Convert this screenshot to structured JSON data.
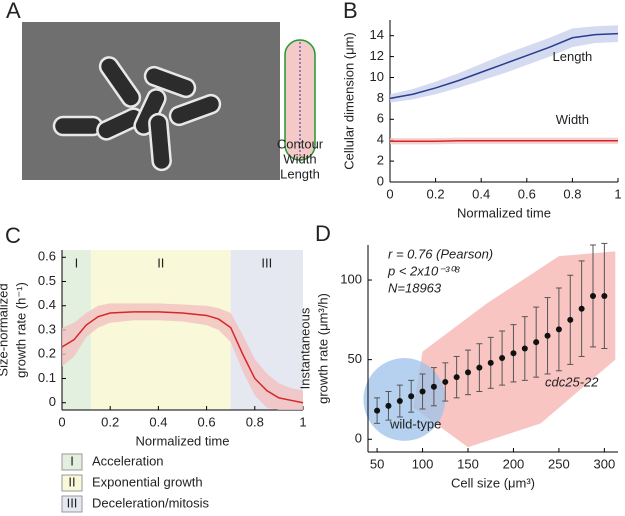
{
  "image_panel": {
    "label": "A",
    "legend": [
      {
        "text": "Contour",
        "color": "#1e9a2e"
      },
      {
        "text": "Width",
        "color": "#e0201b"
      },
      {
        "text": "Length",
        "color": "#1f3f9a"
      }
    ]
  },
  "chart_data": [
    {
      "type": "line",
      "panel_label": "B",
      "xlabel": "Normalized time",
      "ylabel": [
        "Cellular dimension (μm)"
      ],
      "xlim": [
        0,
        1
      ],
      "xticks": [
        0,
        0.2,
        0.4,
        0.6,
        0.8,
        1
      ],
      "ylim": [
        0,
        15.5
      ],
      "yticks": [
        0,
        2,
        4,
        6,
        8,
        10,
        12,
        14
      ],
      "x": [
        0,
        0.1,
        0.2,
        0.3,
        0.4,
        0.5,
        0.6,
        0.7,
        0.8,
        0.9,
        1
      ],
      "series": [
        {
          "name": "Length",
          "color": "#2a3c8e",
          "band_color": "#c9d2ee",
          "values": [
            8,
            8.4,
            9.0,
            9.7,
            10.5,
            11.3,
            12.1,
            12.9,
            13.8,
            14.1,
            14.2
          ],
          "lower": [
            7.6,
            7.9,
            8.4,
            9.0,
            9.7,
            10.4,
            11.2,
            12.0,
            12.9,
            13.3,
            13.4
          ],
          "upper": [
            8.4,
            8.9,
            9.6,
            10.4,
            11.3,
            12.2,
            13.0,
            13.8,
            14.7,
            14.9,
            15.0
          ]
        },
        {
          "name": "Width",
          "color": "#d62728",
          "band_color": "#f4c6c6",
          "values": [
            3.9,
            3.9,
            3.9,
            3.95,
            3.95,
            3.95,
            3.95,
            3.95,
            3.95,
            3.95,
            3.95
          ],
          "lower": [
            3.6,
            3.6,
            3.6,
            3.65,
            3.65,
            3.65,
            3.65,
            3.65,
            3.65,
            3.65,
            3.65
          ],
          "upper": [
            4.2,
            4.2,
            4.2,
            4.25,
            4.25,
            4.25,
            4.25,
            4.25,
            4.25,
            4.25,
            4.25
          ]
        }
      ]
    },
    {
      "type": "line",
      "panel_label": "C",
      "xlabel": "Normalized time",
      "ylabel": [
        "Size-normalized",
        "growth rate (h⁻¹)"
      ],
      "xlim": [
        0,
        1
      ],
      "xticks": [
        0,
        0.2,
        0.4,
        0.6,
        0.8,
        1
      ],
      "ylim": [
        -0.03,
        0.63
      ],
      "yticks": [
        0,
        0.1,
        0.2,
        0.3,
        0.4,
        0.5,
        0.6
      ],
      "phases": [
        {
          "label": "I",
          "name": "Acceleration",
          "start": 0,
          "end": 0.12,
          "color": "#e3f0e0"
        },
        {
          "label": "II",
          "name": "Exponential growth",
          "start": 0.12,
          "end": 0.7,
          "color": "#f9f8d9"
        },
        {
          "label": "III",
          "name": "Deceleration/mitosis",
          "start": 0.7,
          "end": 1,
          "color": "#e5e7f1"
        }
      ],
      "x": [
        0,
        0.05,
        0.1,
        0.15,
        0.2,
        0.3,
        0.4,
        0.5,
        0.6,
        0.65,
        0.7,
        0.75,
        0.8,
        0.85,
        0.9,
        0.95,
        1
      ],
      "series": [
        {
          "name": "Growth rate",
          "color": "#d62728",
          "band_color": "#f2c0c0",
          "values": [
            0.23,
            0.26,
            0.32,
            0.355,
            0.37,
            0.375,
            0.375,
            0.37,
            0.36,
            0.345,
            0.31,
            0.2,
            0.1,
            0.05,
            0.02,
            0.01,
            0
          ],
          "lower": [
            0.15,
            0.19,
            0.27,
            0.31,
            0.33,
            0.34,
            0.34,
            0.335,
            0.32,
            0.3,
            0.25,
            0.13,
            0.03,
            -0.02,
            -0.03,
            -0.03,
            -0.03
          ],
          "upper": [
            0.31,
            0.33,
            0.37,
            0.4,
            0.41,
            0.41,
            0.41,
            0.405,
            0.4,
            0.39,
            0.37,
            0.28,
            0.18,
            0.12,
            0.08,
            0.06,
            0.05
          ]
        }
      ]
    },
    {
      "type": "scatter",
      "panel_label": "D",
      "xlabel": "Cell size (μm³)",
      "ylabel": [
        "Instantaneous",
        "growth rate (μm³/h)"
      ],
      "xlim": [
        40,
        315
      ],
      "xticks": [
        50,
        100,
        150,
        200,
        250,
        300
      ],
      "ylim": [
        -8,
        122
      ],
      "yticks": [
        0,
        50,
        100
      ],
      "annotations": [
        "r = 0.76 (Pearson)",
        "p < 2x10⁻³⁰⁸",
        "N=18963"
      ],
      "clouds": [
        {
          "name": "wild-type",
          "color": "#9ec1ea",
          "label_color": "#2f7fc1"
        },
        {
          "name": "cdc25-22",
          "color": "#ec5a4f",
          "label_color": "#e0201b"
        }
      ],
      "x": [
        50,
        62.5,
        75,
        87.5,
        100,
        112.5,
        125,
        137.5,
        150,
        162.5,
        175,
        187.5,
        200,
        212.5,
        225,
        237.5,
        250,
        262.5,
        275,
        287.5,
        300
      ],
      "series": [
        {
          "name": "Binned mean",
          "color": "#111111",
          "values": [
            18,
            21,
            24,
            27,
            30,
            33,
            36,
            39,
            42,
            45,
            48,
            51,
            54,
            57,
            61,
            65,
            69,
            75,
            82,
            90,
            90
          ],
          "error": [
            8,
            9,
            10,
            10,
            11,
            12,
            12,
            13,
            14,
            15,
            16,
            17,
            18,
            20,
            22,
            24,
            26,
            28,
            30,
            32,
            33
          ]
        }
      ]
    }
  ]
}
